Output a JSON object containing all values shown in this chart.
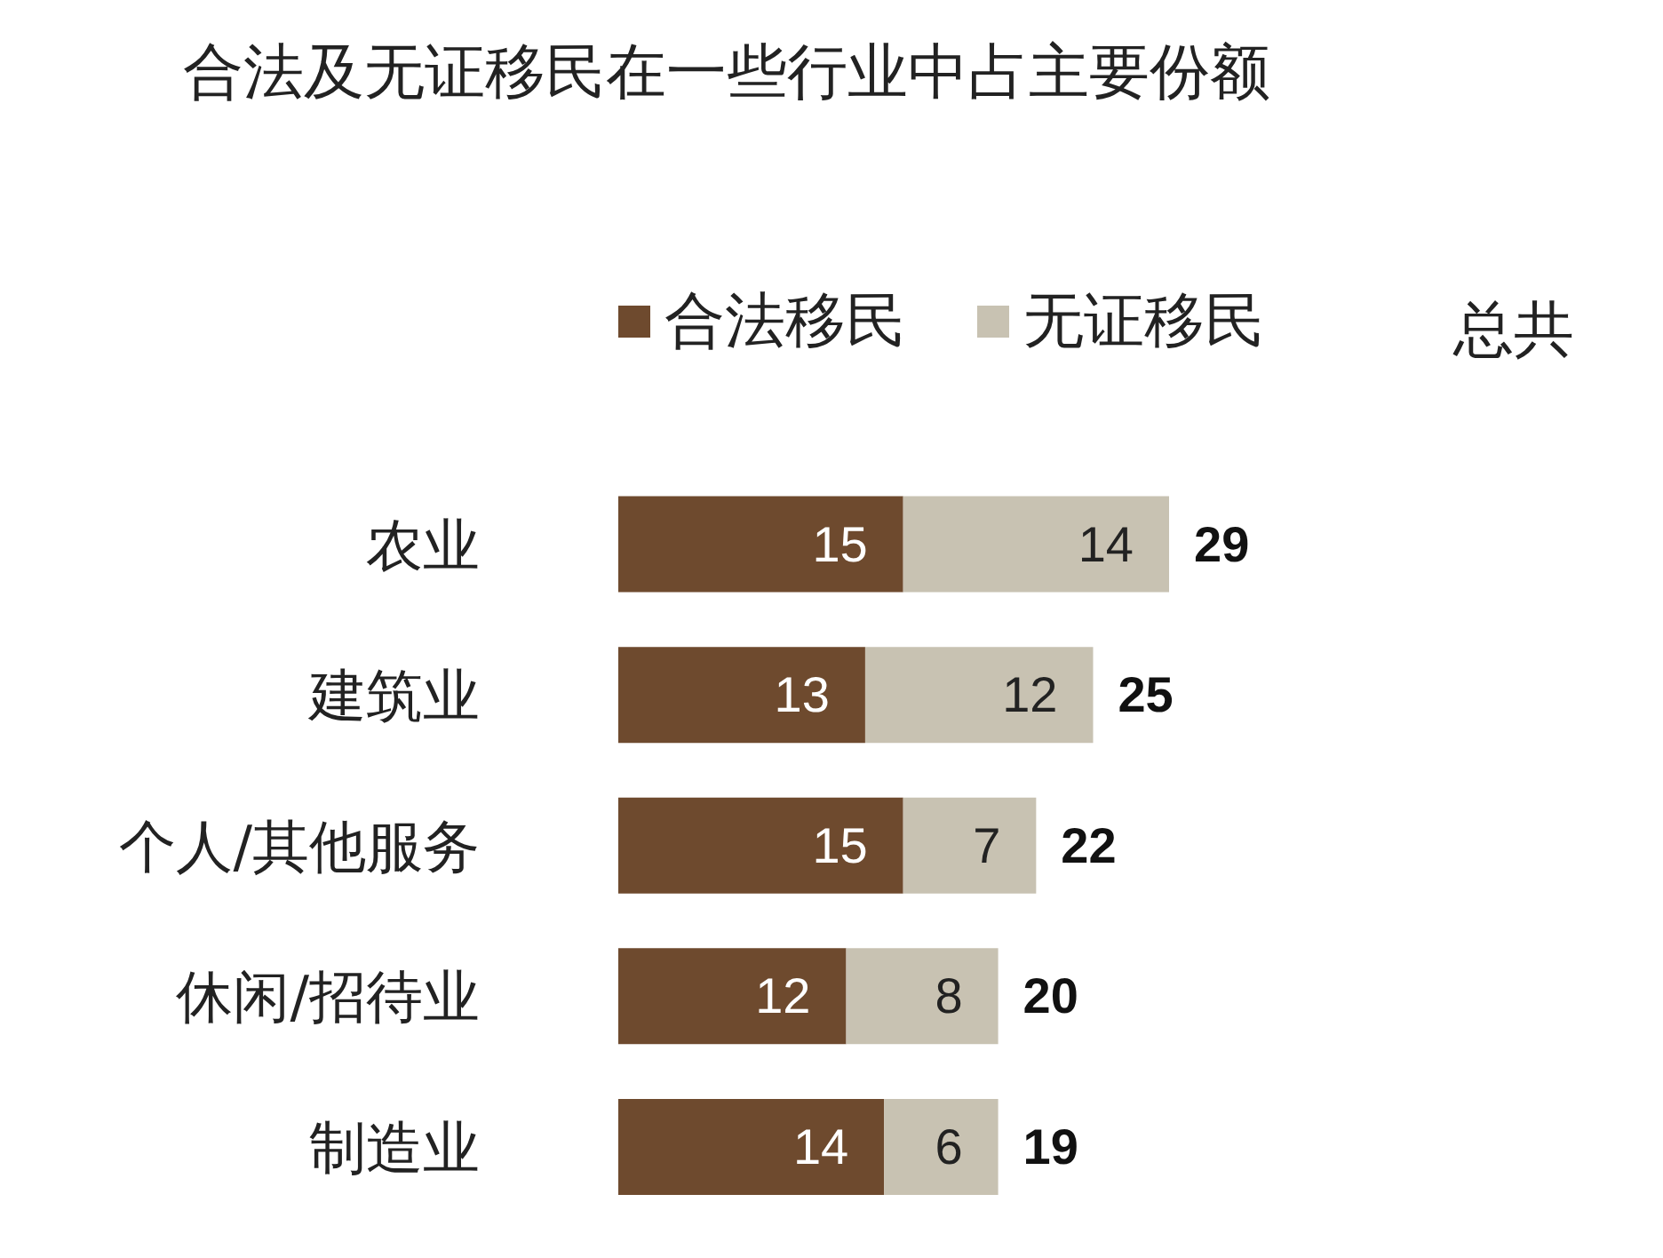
{
  "chart_data": {
    "type": "bar",
    "orientation": "horizontal",
    "stacked": true,
    "title": "合法及无证移民在一些行业中占主要份额",
    "categories": [
      "农业",
      "建筑业",
      "个人/其他服务",
      "休闲/招待业",
      "制造业"
    ],
    "series": [
      {
        "name": "合法移民",
        "color": "#6e4a2e",
        "values": [
          15,
          13,
          15,
          12,
          14
        ]
      },
      {
        "name": "无证移民",
        "color": "#c8c2b2",
        "values": [
          14,
          12,
          7,
          8,
          6
        ]
      }
    ],
    "data_labels": true,
    "totals": [
      "29",
      "25",
      "22",
      "20",
      "19"
    ],
    "annotations": [
      "总共"
    ],
    "legend": "top"
  }
}
